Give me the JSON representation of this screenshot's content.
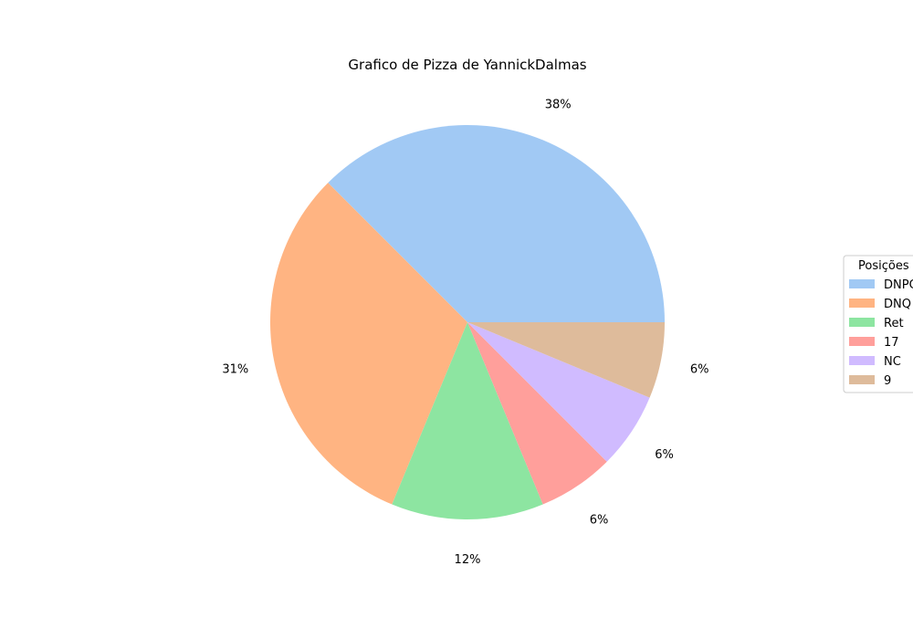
{
  "chart_data": {
    "type": "pie",
    "title": "Grafico de Pizza de YannickDalmas",
    "slices": [
      {
        "label": "DNPQ",
        "value": 37.5,
        "pct_label": "38%",
        "color": "#a1c9f4"
      },
      {
        "label": "DNQ",
        "value": 31.25,
        "pct_label": "31%",
        "color": "#ffb482"
      },
      {
        "label": "Ret",
        "value": 12.5,
        "pct_label": "12%",
        "color": "#8de5a1"
      },
      {
        "label": "17",
        "value": 6.25,
        "pct_label": "6%",
        "color": "#ff9f9b"
      },
      {
        "label": "NC",
        "value": 6.25,
        "pct_label": "6%",
        "color": "#d0bbff"
      },
      {
        "label": "9",
        "value": 6.25,
        "pct_label": "6%",
        "color": "#debb9b"
      }
    ],
    "legend": {
      "title": "Posições",
      "placement": "right"
    }
  }
}
